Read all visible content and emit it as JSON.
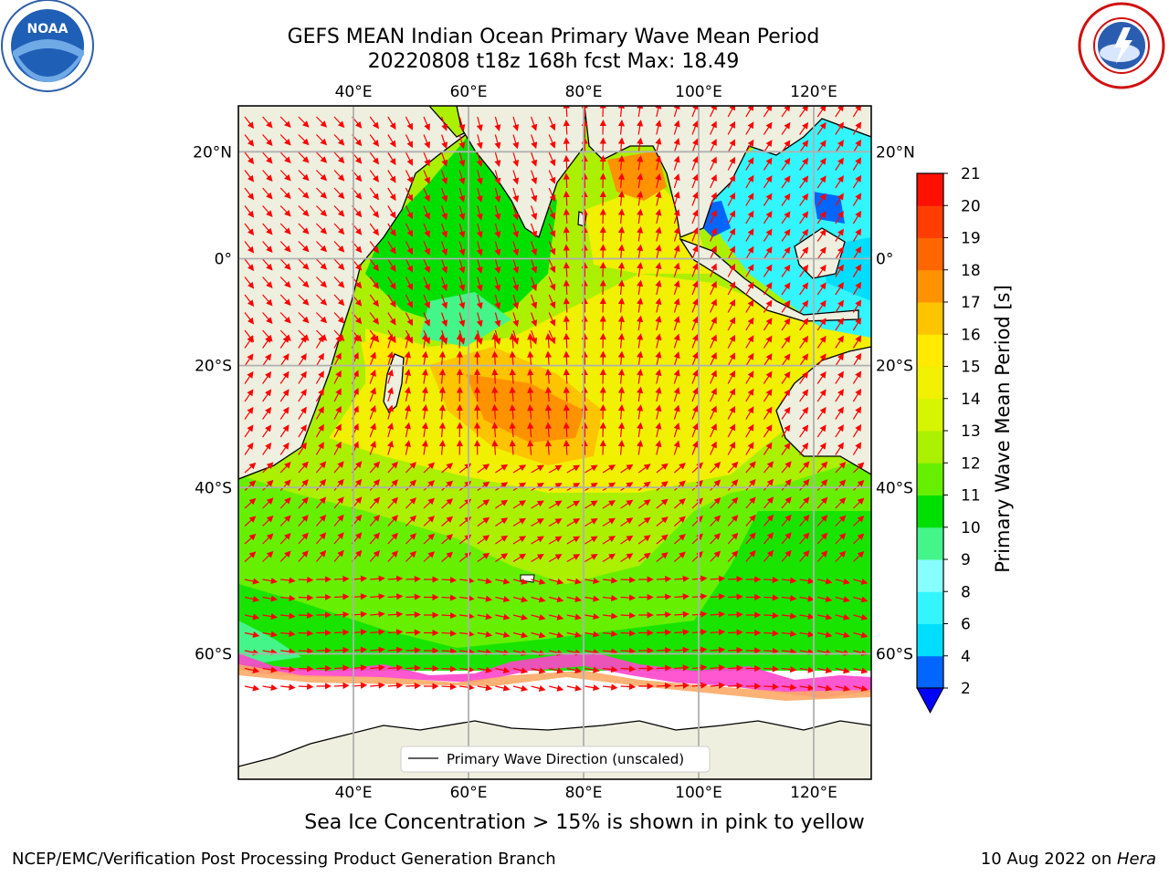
{
  "title_line1": "GEFS MEAN Indian Ocean Primary Wave Mean Period",
  "title_line2": "20220808 t18z 168h fcst   Max: 18.49",
  "map": {
    "lon_ticks": [
      "40°E",
      "60°E",
      "80°E",
      "100°E",
      "120°E"
    ],
    "lat_ticks_left": [
      "20°N",
      "0°",
      "20°S",
      "40°S",
      "60°S"
    ],
    "lat_ticks_right": [
      "20°N",
      "0°",
      "20°S",
      "40°S",
      "60°S"
    ],
    "lon_range": [
      20,
      130
    ],
    "lat_range": [
      -70,
      28
    ],
    "land_color": "#efefdf",
    "ice_colors": [
      "#ff44cc",
      "#ffaa66",
      "#ffee55"
    ],
    "arrow_color": "#ff0000",
    "legend_label": "Primary Wave Direction (unscaled)"
  },
  "colorbar": {
    "label": "Primary Wave Mean Period [s]",
    "tick_labels": [
      "2",
      "4",
      "6",
      "8",
      "9",
      "10",
      "11",
      "12",
      "13",
      "14",
      "15",
      "16",
      "17",
      "18",
      "19",
      "20",
      "21"
    ],
    "colors": [
      "#0066ff",
      "#00ddff",
      "#33f5ff",
      "#88ffff",
      "#44f58a",
      "#00e000",
      "#66f000",
      "#aaf000",
      "#d6f500",
      "#f0f000",
      "#ffea00",
      "#ffc400",
      "#ff9200",
      "#ff6600",
      "#ff3d00",
      "#ff1000"
    ],
    "extend": "min"
  },
  "bottom_note": "Sea Ice Concentration > 15% is shown in pink to yellow",
  "credit_left": "NCEP/EMC/Verification Post Processing Product Generation Branch",
  "credit_date": "10 Aug 2022 on ",
  "credit_machine": "Hera",
  "logos": {
    "left": "noaa-logo",
    "right": "nws-logo"
  }
}
